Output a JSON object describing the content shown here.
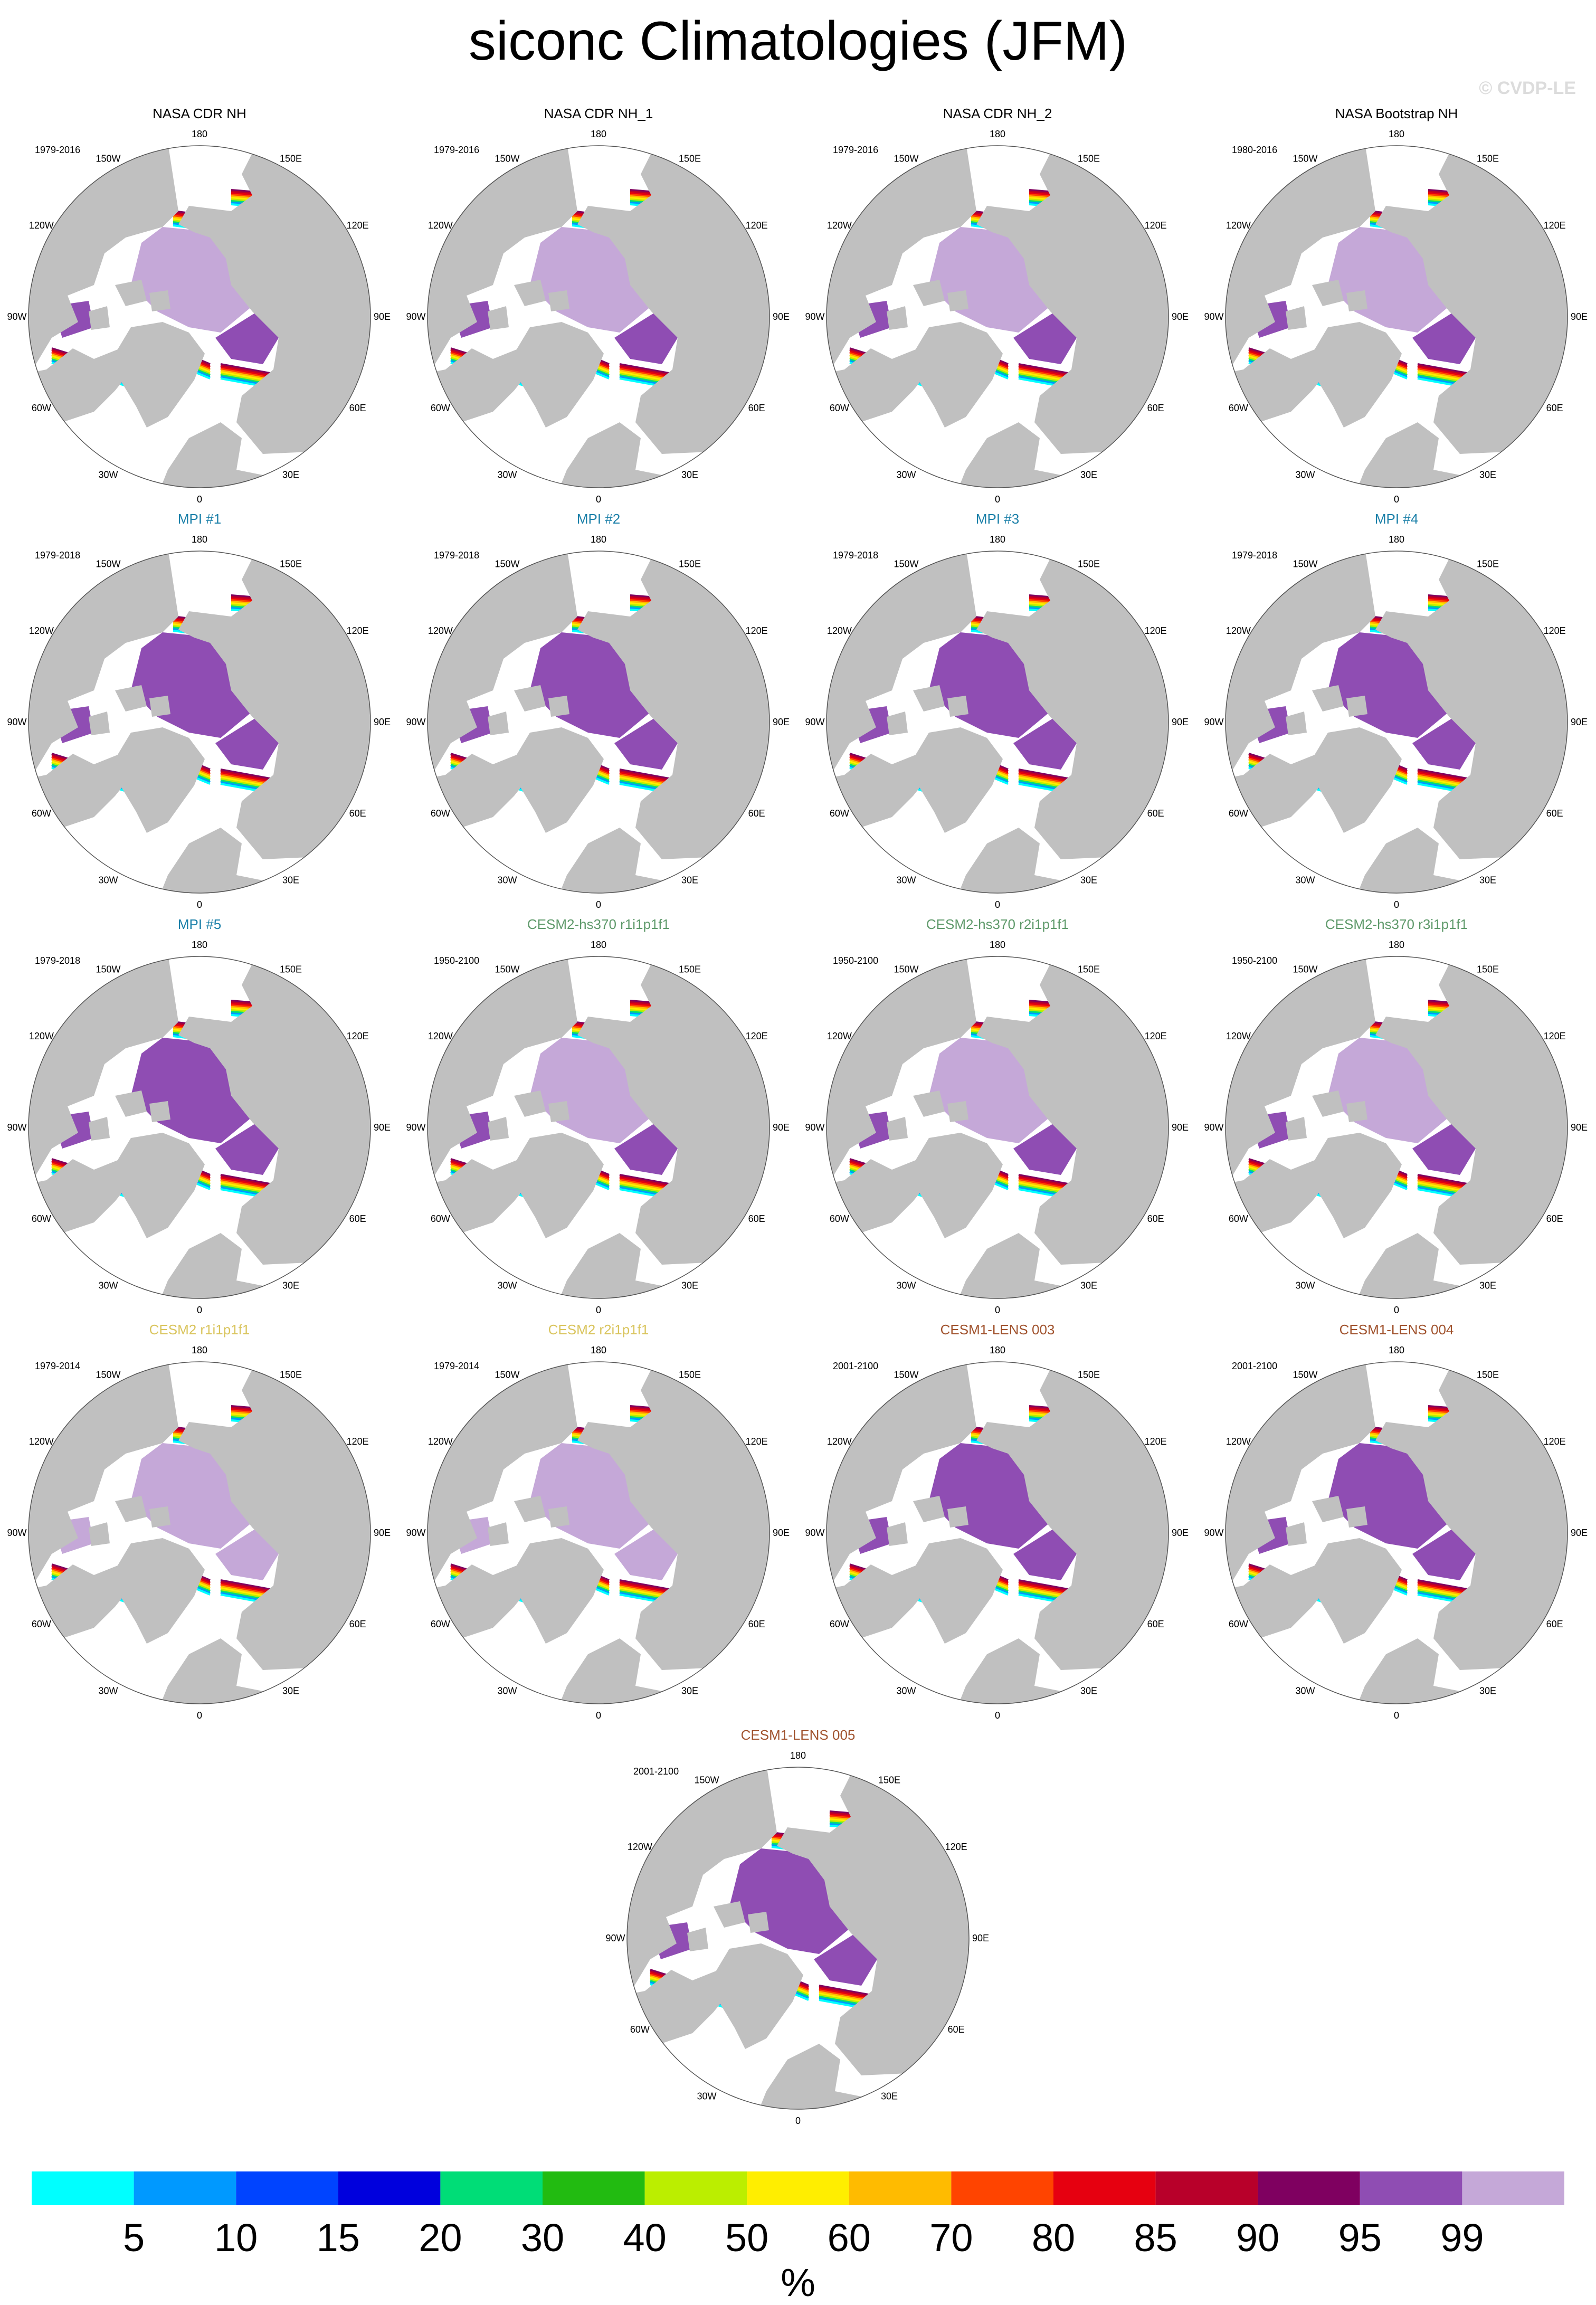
{
  "title": "siconc Climatologies (JFM)",
  "watermark": "© CVDP-LE",
  "colors": {
    "land": "#c0c0c0",
    "ocean": "#ffffff",
    "obs_title": "#000000",
    "mpi_title": "#1a7fa8",
    "cesm2hs_title": "#5f9a6b",
    "cesm2_title": "#d9c45c",
    "cesm1_title": "#a0522d"
  },
  "lon_labels": [
    "180",
    "150E",
    "120E",
    "90E",
    "60E",
    "30E",
    "0",
    "30W",
    "60W",
    "90W",
    "120W",
    "150W"
  ],
  "panels": [
    {
      "title": "NASA CDR NH",
      "years": "1979-2016",
      "group": "obs",
      "style": "obs"
    },
    {
      "title": "NASA CDR NH_1",
      "years": "1979-2016",
      "group": "obs",
      "style": "obs"
    },
    {
      "title": "NASA CDR NH_2",
      "years": "1979-2016",
      "group": "obs",
      "style": "obs"
    },
    {
      "title": "NASA Bootstrap NH",
      "years": "1980-2016",
      "group": "obs",
      "style": "obsb"
    },
    {
      "title": "MPI #1",
      "years": "1979-2018",
      "group": "mpi",
      "style": "mpi"
    },
    {
      "title": "MPI #2",
      "years": "1979-2018",
      "group": "mpi",
      "style": "mpi"
    },
    {
      "title": "MPI #3",
      "years": "1979-2018",
      "group": "mpi",
      "style": "mpi"
    },
    {
      "title": "MPI #4",
      "years": "1979-2018",
      "group": "mpi",
      "style": "mpi"
    },
    {
      "title": "MPI #5",
      "years": "1979-2018",
      "group": "mpi",
      "style": "mpi"
    },
    {
      "title": "CESM2-hs370 r1i1p1f1",
      "years": "1950-2100",
      "group": "cesm2hs",
      "style": "hs"
    },
    {
      "title": "CESM2-hs370 r2i1p1f1",
      "years": "1950-2100",
      "group": "cesm2hs",
      "style": "hs"
    },
    {
      "title": "CESM2-hs370 r3i1p1f1",
      "years": "1950-2100",
      "group": "cesm2hs",
      "style": "hs"
    },
    {
      "title": "CESM2 r1i1p1f1",
      "years": "1979-2014",
      "group": "cesm2",
      "style": "cesm2"
    },
    {
      "title": "CESM2 r2i1p1f1",
      "years": "1979-2014",
      "group": "cesm2",
      "style": "cesm2"
    },
    {
      "title": "CESM1-LENS 003",
      "years": "2001-2100",
      "group": "cesm1",
      "style": "lens"
    },
    {
      "title": "CESM1-LENS 004",
      "years": "2001-2100",
      "group": "cesm1",
      "style": "lens"
    },
    {
      "title": "CESM1-LENS 005",
      "years": "2001-2100",
      "group": "cesm1",
      "style": "lens"
    }
  ],
  "colorbar": {
    "colors": [
      "#00ffff",
      "#0099ff",
      "#0044ff",
      "#0000dd",
      "#00dd77",
      "#22bb11",
      "#bbee00",
      "#ffee00",
      "#ffbb00",
      "#ff4400",
      "#e60010",
      "#b8002a",
      "#7f0060",
      "#8f4db3",
      "#c5a8d8"
    ],
    "labels": [
      "5",
      "10",
      "15",
      "20",
      "30",
      "40",
      "50",
      "60",
      "70",
      "80",
      "85",
      "90",
      "95",
      "99"
    ],
    "units": "%"
  }
}
